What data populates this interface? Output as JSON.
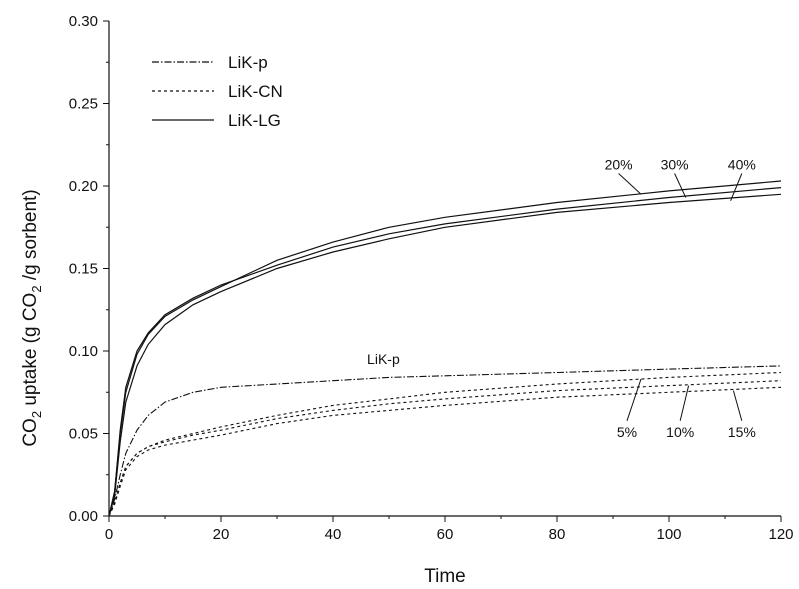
{
  "chart_data": {
    "type": "line",
    "title": "",
    "xlabel": "Time",
    "ylabel": {
      "parts": [
        "CO",
        "2",
        " uptake (g CO",
        "2",
        " /g sorbent)"
      ]
    },
    "xlim": [
      0,
      120
    ],
    "ylim": [
      0,
      0.3
    ],
    "xticks": [
      "0",
      "20",
      "40",
      "60",
      "80",
      "100",
      "120"
    ],
    "yticks": [
      "0.00",
      "0.05",
      "0.10",
      "0.15",
      "0.20",
      "0.25",
      "0.30"
    ],
    "grid": false,
    "legend": {
      "placement": "top-left",
      "entries": [
        {
          "label": "LiK-p",
          "style": "dashdot"
        },
        {
          "label": "LiK-CN",
          "style": "dotted"
        },
        {
          "label": "LiK-LG",
          "style": "solid"
        }
      ]
    },
    "series": [
      {
        "group": "LiK-LG",
        "label": "20%",
        "style": "solid",
        "x": [
          0,
          1,
          2,
          3,
          5,
          7,
          10,
          15,
          20,
          30,
          40,
          50,
          60,
          80,
          100,
          120
        ],
        "y": [
          0,
          0.015,
          0.05,
          0.075,
          0.098,
          0.11,
          0.121,
          0.131,
          0.139,
          0.155,
          0.166,
          0.175,
          0.181,
          0.19,
          0.197,
          0.203
        ]
      },
      {
        "group": "LiK-LG",
        "label": "30%",
        "style": "solid",
        "x": [
          0,
          1,
          2,
          3,
          5,
          7,
          10,
          15,
          20,
          30,
          40,
          50,
          60,
          80,
          100,
          120
        ],
        "y": [
          0,
          0.014,
          0.052,
          0.078,
          0.1,
          0.111,
          0.122,
          0.132,
          0.14,
          0.152,
          0.163,
          0.171,
          0.177,
          0.186,
          0.193,
          0.199
        ]
      },
      {
        "group": "LiK-LG",
        "label": "40%",
        "style": "solid",
        "x": [
          0,
          1,
          2,
          3,
          5,
          7,
          10,
          15,
          20,
          30,
          40,
          50,
          60,
          80,
          100,
          120
        ],
        "y": [
          0,
          0.012,
          0.045,
          0.069,
          0.091,
          0.104,
          0.116,
          0.128,
          0.136,
          0.15,
          0.16,
          0.168,
          0.175,
          0.184,
          0.19,
          0.195
        ]
      },
      {
        "group": "LiK-p",
        "label": "LiK-p",
        "style": "dashdot",
        "x": [
          0,
          1,
          2,
          3,
          5,
          7,
          10,
          15,
          20,
          30,
          40,
          50,
          60,
          80,
          100,
          120
        ],
        "y": [
          0,
          0.01,
          0.025,
          0.038,
          0.052,
          0.061,
          0.069,
          0.075,
          0.078,
          0.08,
          0.082,
          0.084,
          0.085,
          0.087,
          0.089,
          0.091
        ]
      },
      {
        "group": "LiK-CN",
        "label": "5%",
        "style": "dotted",
        "x": [
          0,
          1,
          2,
          3,
          5,
          7,
          10,
          15,
          20,
          30,
          40,
          50,
          60,
          80,
          100,
          120
        ],
        "y": [
          0,
          0.008,
          0.02,
          0.03,
          0.038,
          0.042,
          0.046,
          0.05,
          0.054,
          0.061,
          0.067,
          0.071,
          0.075,
          0.08,
          0.084,
          0.087
        ]
      },
      {
        "group": "LiK-CN",
        "label": "10%",
        "style": "dotted",
        "x": [
          0,
          1,
          2,
          3,
          5,
          7,
          10,
          15,
          20,
          30,
          40,
          50,
          60,
          80,
          100,
          120
        ],
        "y": [
          0,
          0.008,
          0.02,
          0.03,
          0.038,
          0.042,
          0.045,
          0.049,
          0.052,
          0.059,
          0.064,
          0.068,
          0.071,
          0.076,
          0.079,
          0.082
        ]
      },
      {
        "group": "LiK-CN",
        "label": "15%",
        "style": "dotted",
        "x": [
          0,
          1,
          2,
          3,
          5,
          7,
          10,
          15,
          20,
          30,
          40,
          50,
          60,
          80,
          100,
          120
        ],
        "y": [
          0,
          0.007,
          0.018,
          0.028,
          0.036,
          0.04,
          0.043,
          0.046,
          0.049,
          0.056,
          0.061,
          0.064,
          0.067,
          0.072,
          0.075,
          0.078
        ]
      }
    ],
    "annotations": [
      {
        "text": "20%",
        "x": 91,
        "y": 0.21,
        "line_to": [
          95,
          0.195
        ]
      },
      {
        "text": "30%",
        "x": 101,
        "y": 0.21,
        "line_to": [
          103,
          0.193
        ]
      },
      {
        "text": "40%",
        "x": 113,
        "y": 0.21,
        "line_to": [
          111,
          0.191
        ]
      },
      {
        "text": "LiK-p",
        "x": 49,
        "y": 0.092
      },
      {
        "text": "5%",
        "x": 92.5,
        "y": 0.048,
        "line_to": [
          95,
          0.083
        ]
      },
      {
        "text": "10%",
        "x": 102,
        "y": 0.048,
        "line_to": [
          103.5,
          0.079
        ]
      },
      {
        "text": "15%",
        "x": 113,
        "y": 0.048,
        "line_to": [
          111.5,
          0.076
        ]
      }
    ]
  }
}
